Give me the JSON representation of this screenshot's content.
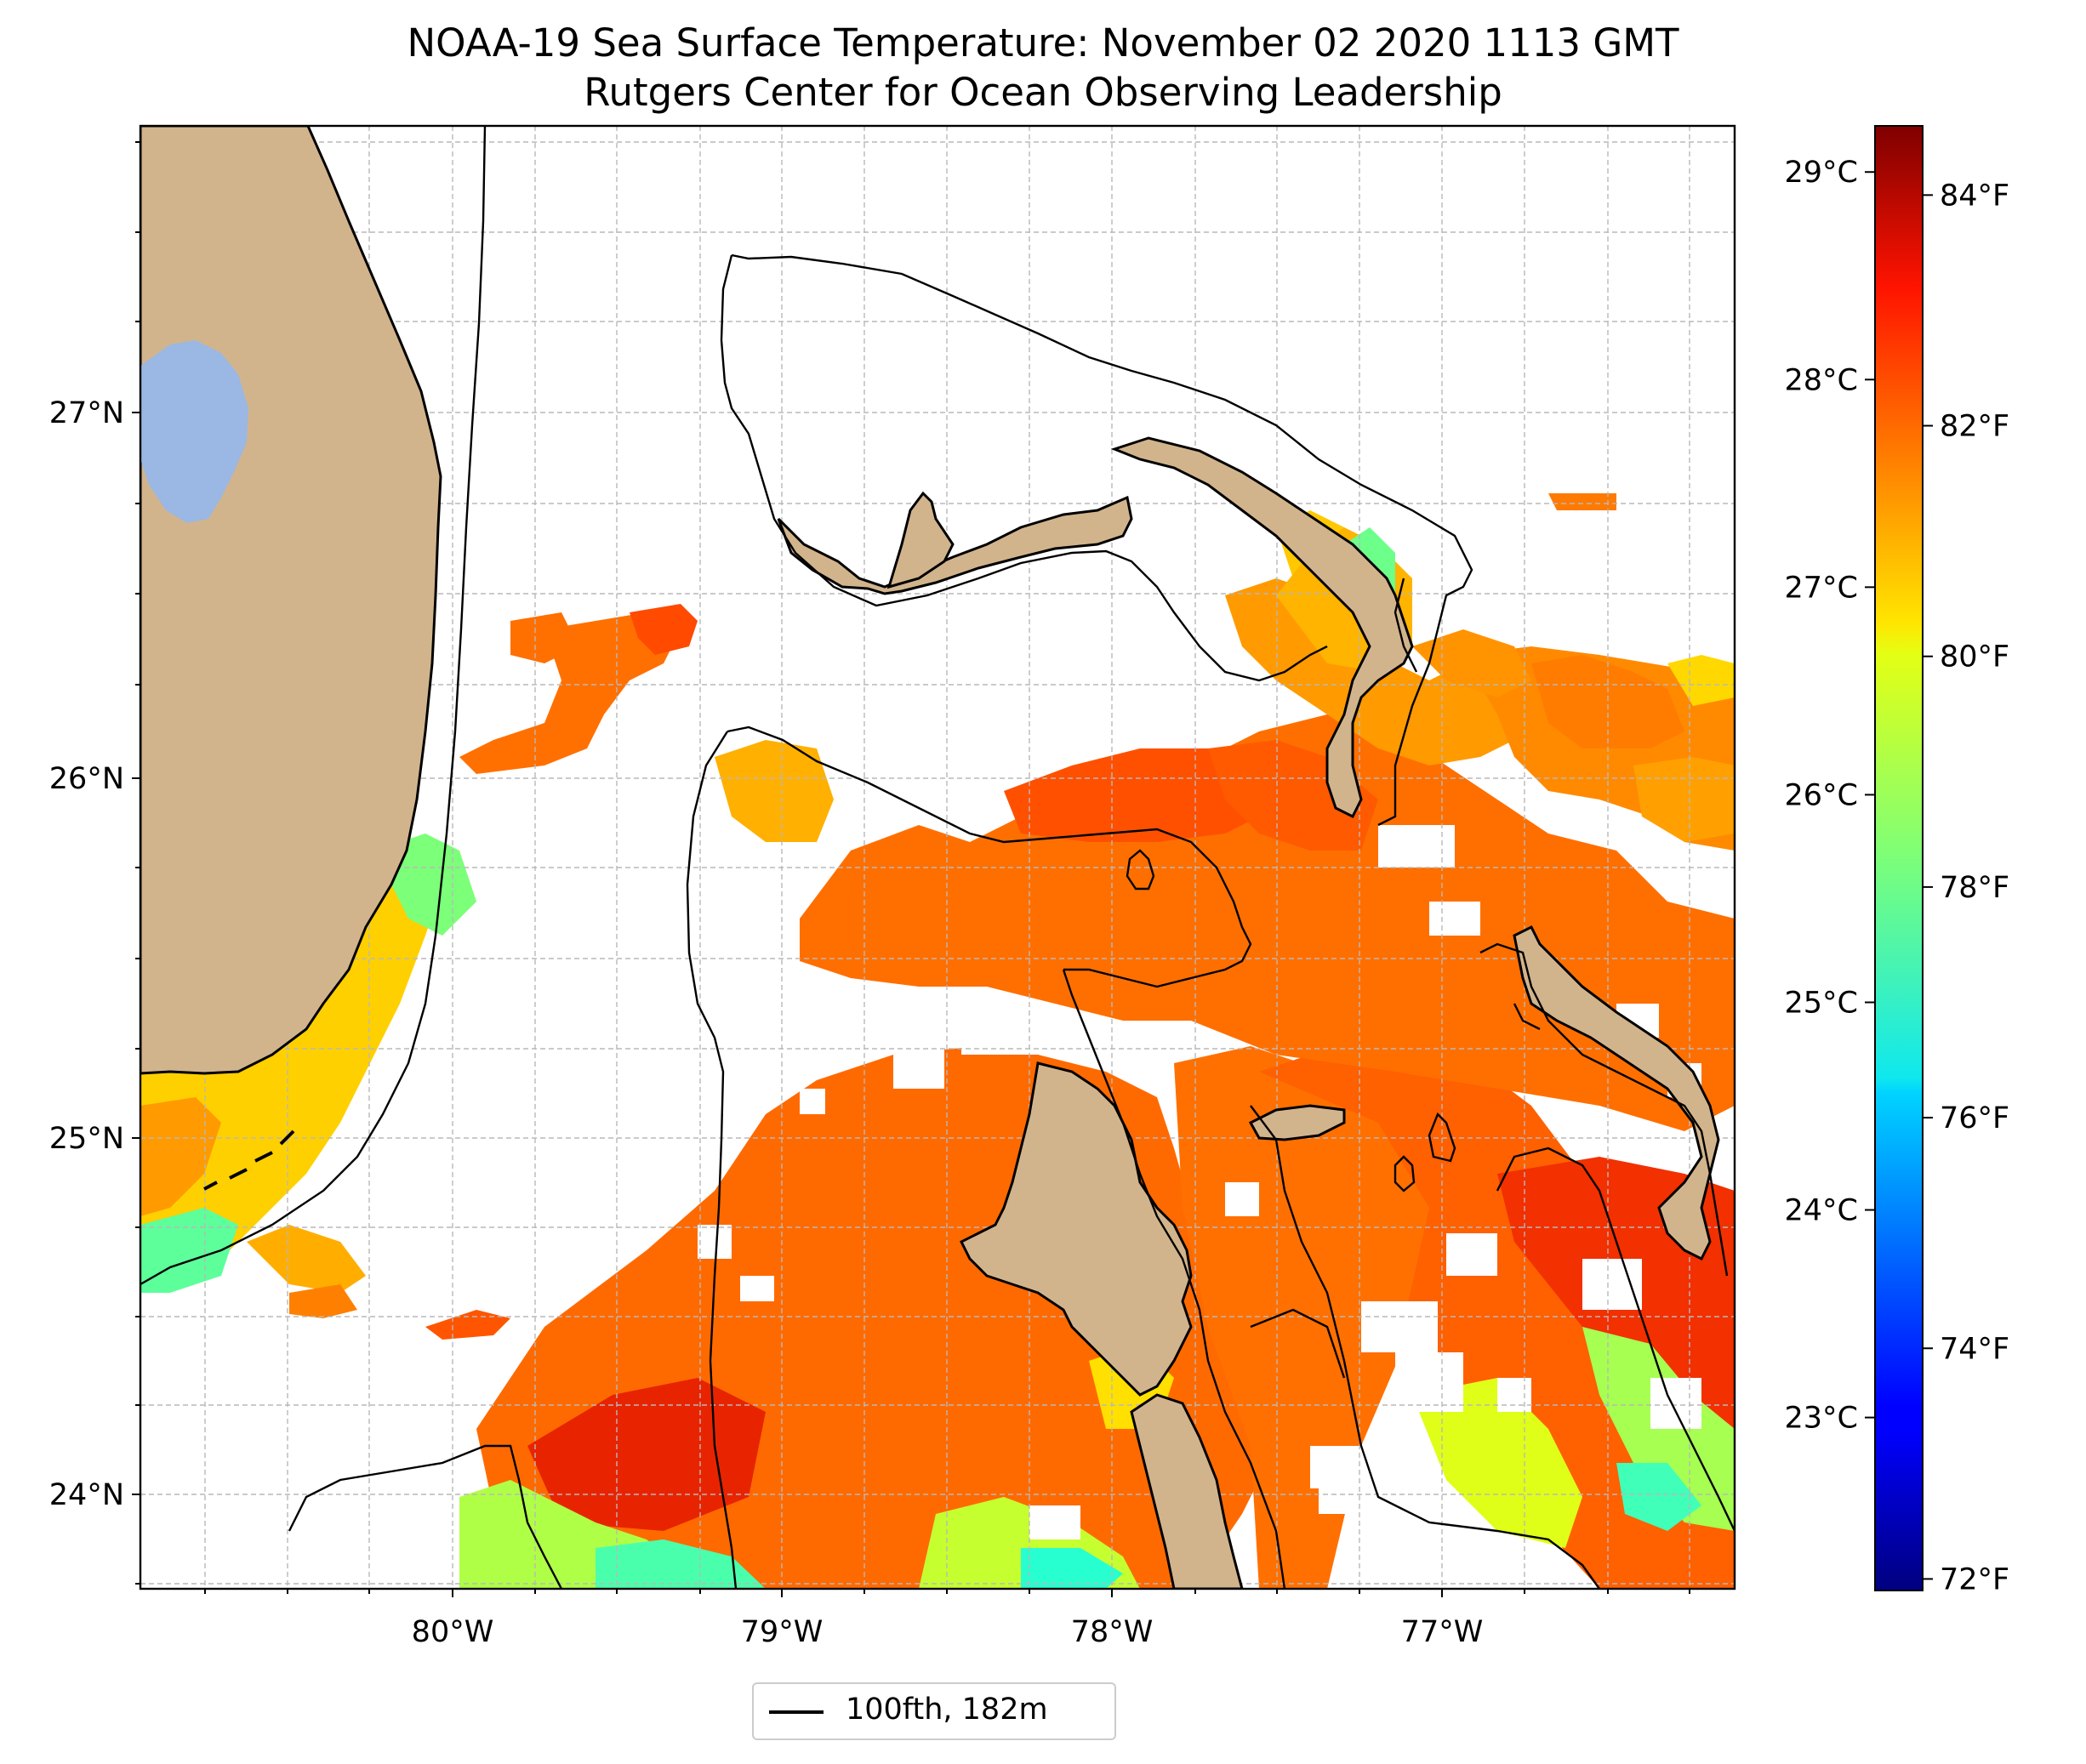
{
  "header": {
    "title_line1": "NOAA-19 Sea Surface Temperature: November 02 2020 1113 GMT",
    "title_line2": "Rutgers Center for Ocean Observing Leadership"
  },
  "map": {
    "lon_ticks": [
      {
        "value": -80,
        "label": "80°W"
      },
      {
        "value": -79,
        "label": "79°W"
      },
      {
        "value": -78,
        "label": "78°W"
      },
      {
        "value": -77,
        "label": "77°W"
      }
    ],
    "lat_ticks": [
      {
        "value": 27,
        "label": "27°N"
      },
      {
        "value": 26,
        "label": "26°N"
      },
      {
        "value": 25,
        "label": "25°N"
      },
      {
        "value": 24,
        "label": "24°N"
      }
    ],
    "extent": {
      "lon_min": -80.95,
      "lon_max": -76.1,
      "lat_min": 23.75,
      "lat_max": 27.8
    },
    "gridlines": true,
    "colors": {
      "land": "#d2b48c",
      "lake": "#9bb7e3",
      "ocean_no_data": "#ffffff",
      "contour": "#000000"
    }
  },
  "colorbar": {
    "colormap": "jet",
    "fahrenheit_ticks": [
      {
        "value": 72,
        "label": "72°F"
      },
      {
        "value": 74,
        "label": "74°F"
      },
      {
        "value": 76,
        "label": "76°F"
      },
      {
        "value": 78,
        "label": "78°F"
      },
      {
        "value": 80,
        "label": "80°F"
      },
      {
        "value": 82,
        "label": "82°F"
      },
      {
        "value": 84,
        "label": "84°F"
      }
    ],
    "celsius_ticks": [
      {
        "value": 23,
        "label": "23°C"
      },
      {
        "value": 24,
        "label": "24°C"
      },
      {
        "value": 25,
        "label": "25°C"
      },
      {
        "value": 26,
        "label": "26°C"
      },
      {
        "value": 27,
        "label": "27°C"
      },
      {
        "value": 28,
        "label": "28°C"
      },
      {
        "value": 29,
        "label": "29°C"
      }
    ],
    "range_f": [
      71.9,
      84.6
    ]
  },
  "legend": {
    "label": "100fth, 182m"
  }
}
